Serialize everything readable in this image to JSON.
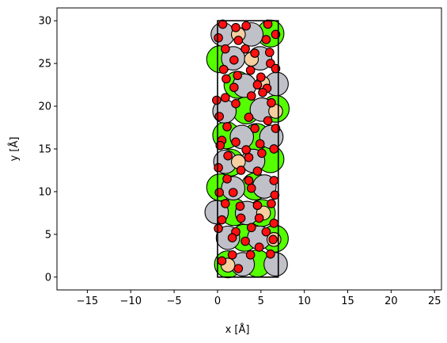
{
  "chart_data": {
    "type": "scatter",
    "title": "",
    "xlabel": "x [Å]",
    "ylabel": "y [Å]",
    "xlim": [
      -18.5,
      25.8
    ],
    "ylim": [
      -1.5,
      31.5
    ],
    "xticks": [
      -15,
      -10,
      -5,
      0,
      5,
      10,
      15,
      20,
      25
    ],
    "yticks": [
      0,
      5,
      10,
      15,
      20,
      25,
      30
    ],
    "grid": false,
    "legend": "none",
    "cell": {
      "x0": 0.0,
      "y0": 0.0,
      "x1": 7.0,
      "y1": 30.0,
      "color": "#000000"
    },
    "colors": {
      "green": "#55ff00",
      "grey": "#c0c0c8",
      "tan": "#f5cfa0",
      "red": "#ff1010",
      "edge": "#000000"
    },
    "atoms": {
      "green": [
        [
          0.3,
          25.5
        ],
        [
          6.1,
          28.5
        ],
        [
          2.3,
          22.5
        ],
        [
          3.3,
          19.5
        ],
        [
          6.7,
          19.7
        ],
        [
          1.0,
          16.6
        ],
        [
          4.5,
          16.4
        ],
        [
          6.1,
          13.8
        ],
        [
          1.5,
          13.4
        ],
        [
          0.3,
          10.5
        ],
        [
          4.3,
          10.6
        ],
        [
          1.9,
          7.6
        ],
        [
          5.1,
          7.5
        ],
        [
          3.1,
          4.6
        ],
        [
          6.6,
          4.5
        ],
        [
          1.2,
          1.5
        ],
        [
          4.6,
          1.6
        ]
      ],
      "grey": [
        [
          0.6,
          28.4
        ],
        [
          3.9,
          28.4
        ],
        [
          1.8,
          25.6
        ],
        [
          4.9,
          25.6
        ],
        [
          6.8,
          22.6
        ],
        [
          3.1,
          22.4
        ],
        [
          0.8,
          19.4
        ],
        [
          5.1,
          19.6
        ],
        [
          2.8,
          16.4
        ],
        [
          6.2,
          16.4
        ],
        [
          0.9,
          13.5
        ],
        [
          4.1,
          13.6
        ],
        [
          1.8,
          10.4
        ],
        [
          5.4,
          10.6
        ],
        [
          -0.1,
          7.6
        ],
        [
          3.4,
          7.5
        ],
        [
          1.2,
          4.6
        ],
        [
          4.8,
          4.6
        ],
        [
          2.9,
          1.5
        ],
        [
          6.7,
          1.5
        ]
      ],
      "tan": [
        [
          2.4,
          28.4
        ],
        [
          3.9,
          25.5
        ],
        [
          5.2,
          22.7
        ],
        [
          6.7,
          19.4
        ],
        [
          2.4,
          13.5
        ],
        [
          5.3,
          7.5
        ],
        [
          6.5,
          4.4
        ],
        [
          1.2,
          1.4
        ]
      ],
      "red": [
        [
          0.6,
          29.6
        ],
        [
          3.3,
          29.4
        ],
        [
          5.8,
          29.6
        ],
        [
          2.1,
          29.2
        ],
        [
          6.7,
          28.4
        ],
        [
          0.1,
          28.0
        ],
        [
          2.4,
          27.7
        ],
        [
          5.6,
          27.8
        ],
        [
          0.9,
          26.7
        ],
        [
          3.2,
          26.7
        ],
        [
          6.0,
          26.3
        ],
        [
          1.9,
          25.4
        ],
        [
          4.3,
          26.2
        ],
        [
          6.1,
          25.0
        ],
        [
          0.7,
          24.3
        ],
        [
          3.8,
          24.2
        ],
        [
          6.7,
          24.4
        ],
        [
          1.0,
          23.2
        ],
        [
          2.3,
          23.6
        ],
        [
          5.0,
          23.4
        ],
        [
          1.9,
          22.2
        ],
        [
          4.6,
          22.5
        ],
        [
          5.7,
          22.1
        ],
        [
          0.9,
          21.0
        ],
        [
          3.9,
          21.2
        ],
        [
          5.2,
          21.6
        ],
        [
          -0.1,
          20.7
        ],
        [
          2.1,
          20.3
        ],
        [
          6.2,
          20.4
        ],
        [
          0.2,
          18.8
        ],
        [
          3.6,
          18.7
        ],
        [
          5.8,
          18.3
        ],
        [
          1.1,
          17.6
        ],
        [
          4.3,
          17.4
        ],
        [
          6.7,
          17.4
        ],
        [
          0.5,
          16.0
        ],
        [
          2.1,
          15.8
        ],
        [
          4.9,
          15.6
        ],
        [
          0.3,
          15.4
        ],
        [
          3.3,
          14.9
        ],
        [
          6.5,
          15.0
        ],
        [
          1.2,
          14.2
        ],
        [
          3.6,
          14.0
        ],
        [
          5.1,
          14.5
        ],
        [
          0.1,
          12.8
        ],
        [
          2.7,
          12.5
        ],
        [
          4.6,
          12.4
        ],
        [
          1.1,
          11.5
        ],
        [
          3.6,
          11.3
        ],
        [
          6.5,
          11.3
        ],
        [
          0.2,
          9.9
        ],
        [
          1.8,
          9.9
        ],
        [
          3.9,
          10.4
        ],
        [
          6.6,
          9.6
        ],
        [
          0.9,
          8.6
        ],
        [
          2.6,
          8.3
        ],
        [
          4.6,
          8.4
        ],
        [
          6.2,
          8.6
        ],
        [
          0.5,
          6.7
        ],
        [
          2.7,
          6.9
        ],
        [
          4.8,
          6.9
        ],
        [
          6.5,
          6.3
        ],
        [
          0.1,
          5.7
        ],
        [
          2.1,
          5.3
        ],
        [
          3.9,
          5.8
        ],
        [
          5.6,
          5.3
        ],
        [
          1.7,
          4.6
        ],
        [
          3.2,
          4.2
        ],
        [
          4.8,
          3.5
        ],
        [
          6.4,
          4.4
        ],
        [
          1.7,
          2.6
        ],
        [
          3.8,
          2.6
        ],
        [
          6.1,
          2.7
        ],
        [
          0.5,
          1.9
        ],
        [
          2.4,
          1.0
        ]
      ]
    }
  }
}
